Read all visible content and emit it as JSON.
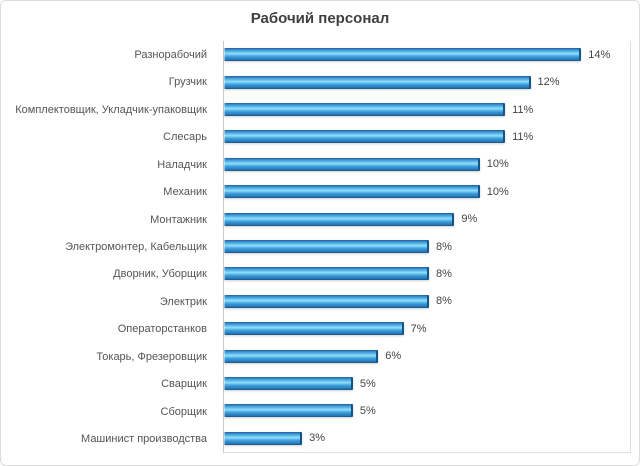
{
  "chart_data": {
    "type": "bar",
    "orientation": "horizontal",
    "title": "Рабочий персонал",
    "categories": [
      "Разнорабочий",
      "Грузчик",
      "Комплектовщик, Укладчик-упаковщик",
      "Слесарь",
      "Наладчик",
      "Механик",
      "Монтажник",
      "Электромонтер, Кабельщик",
      "Дворник, Уборщик",
      "Электрик",
      "Операторстанков",
      "Токарь, Фрезеровщик",
      "Сварщик",
      "Сборщик",
      "Машинист производства"
    ],
    "values": [
      14,
      12,
      11,
      11,
      10,
      10,
      9,
      8,
      8,
      8,
      7,
      6,
      5,
      5,
      3
    ],
    "value_suffix": "%",
    "xlabel": "",
    "ylabel": "",
    "xlim": [
      0,
      16
    ],
    "grid": false,
    "legend": false,
    "data_labels": true,
    "colors": {
      "bar_main": "#3391d0",
      "bar_highlight": "#90e0fa",
      "bar_dark_edge": "#174e83",
      "title_text": "#3f3f3f",
      "label_text": "#555555",
      "axis_line": "#c6cbd1",
      "frame_border": "#dcdcdc"
    }
  }
}
